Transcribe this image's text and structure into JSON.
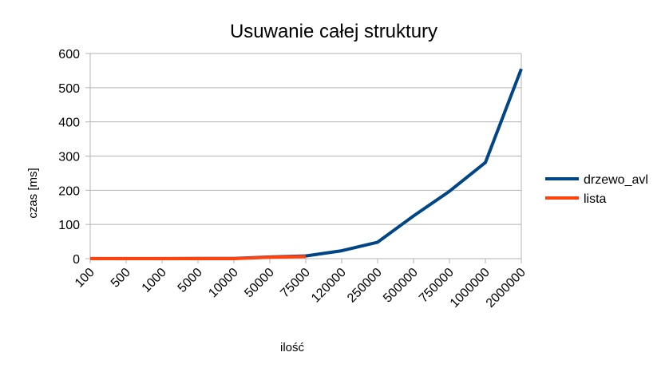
{
  "chart_data": {
    "type": "line",
    "title": "Usuwanie całej struktury",
    "xlabel": "ilość",
    "ylabel": "czas [ms]",
    "categories": [
      "100",
      "500",
      "1000",
      "5000",
      "10000",
      "50000",
      "75000",
      "120000",
      "250000",
      "500000",
      "750000",
      "1000000",
      "2000000"
    ],
    "ylim": [
      0,
      600
    ],
    "yticks": [
      0,
      100,
      200,
      300,
      400,
      500,
      600
    ],
    "grid": true,
    "legend_position": "right",
    "series": [
      {
        "name": "drzewo_avl",
        "color": "#004586",
        "values": [
          0.2,
          0.3,
          0.3,
          0.5,
          0.8,
          5,
          8,
          23,
          48,
          125,
          197,
          281,
          555
        ]
      },
      {
        "name": "lista",
        "color": "#ff420e",
        "values": [
          0,
          0,
          0,
          0,
          0,
          4,
          6,
          null,
          null,
          null,
          null,
          null,
          null
        ]
      }
    ]
  }
}
